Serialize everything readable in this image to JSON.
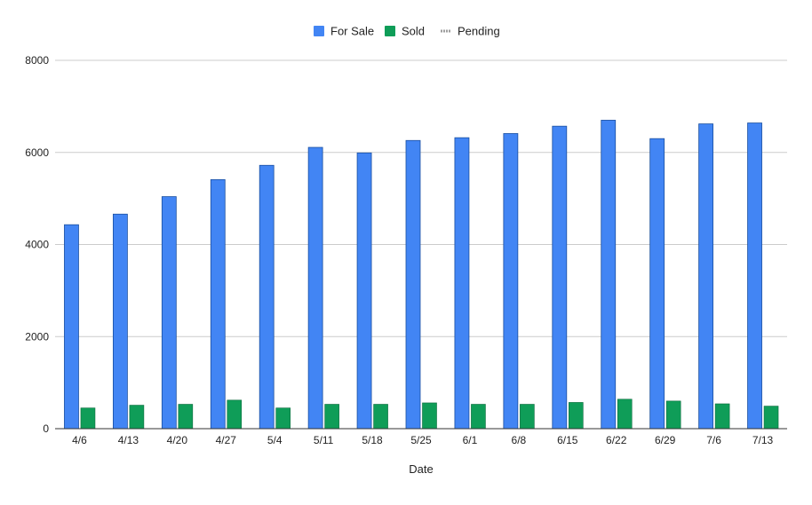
{
  "chart_data": {
    "type": "bar",
    "title": "",
    "xlabel": "Date",
    "ylabel": "",
    "ylim": [
      0,
      8000
    ],
    "yticks": [
      0,
      2000,
      4000,
      6000,
      8000
    ],
    "grid": true,
    "legend_position": "top",
    "categories": [
      "4/6",
      "4/13",
      "4/20",
      "4/27",
      "5/4",
      "5/11",
      "5/18",
      "5/25",
      "6/1",
      "6/8",
      "6/15",
      "6/22",
      "6/29",
      "7/6",
      "7/13"
    ],
    "series": [
      {
        "name": "For Sale",
        "color": "#4285f4",
        "values": [
          4430,
          4660,
          5040,
          5410,
          5720,
          6110,
          5990,
          6260,
          6320,
          6410,
          6570,
          6700,
          6300,
          6620,
          6640
        ]
      },
      {
        "name": "Sold",
        "color": "#0f9d58",
        "values": [
          450,
          510,
          530,
          620,
          450,
          530,
          530,
          560,
          530,
          530,
          570,
          640,
          600,
          540,
          490
        ]
      },
      {
        "name": "Pending",
        "color": "#9e9e9e",
        "values": [
          0,
          0,
          0,
          0,
          0,
          0,
          0,
          0,
          0,
          0,
          0,
          0,
          0,
          0,
          0
        ]
      }
    ]
  }
}
